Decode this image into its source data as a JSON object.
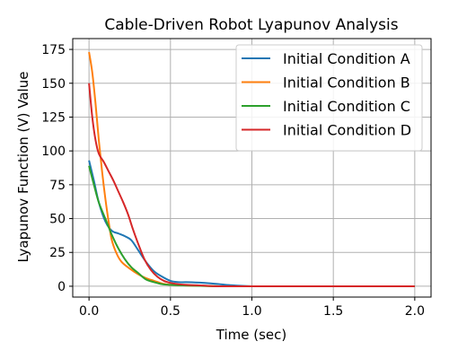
{
  "chart_data": {
    "type": "line",
    "title": "Cable-Driven Robot Lyapunov Analysis",
    "xlabel": "Time (sec)",
    "ylabel": "Lyapunov Function (V) Value",
    "xlim": [
      -0.1,
      2.1
    ],
    "ylim": [
      -8,
      183
    ],
    "xticks": [
      0.0,
      0.5,
      1.0,
      1.5,
      2.0
    ],
    "xtick_labels": [
      "0.0",
      "0.5",
      "1.0",
      "1.5",
      "2.0"
    ],
    "yticks": [
      0,
      25,
      50,
      75,
      100,
      125,
      150,
      175
    ],
    "ytick_labels": [
      "0",
      "25",
      "50",
      "75",
      "100",
      "125",
      "150",
      "175"
    ],
    "grid": true,
    "legend_position": "top-right",
    "series": [
      {
        "name": "Initial Condition A",
        "color": "#1f77b4",
        "x": [
          0,
          0.03,
          0.06,
          0.1,
          0.14,
          0.18,
          0.22,
          0.26,
          0.3,
          0.35,
          0.4,
          0.45,
          0.5,
          0.55,
          0.6,
          0.7,
          0.8,
          0.9,
          1.0,
          1.2,
          1.5,
          2.0
        ],
        "y": [
          93,
          78,
          62,
          48,
          41,
          39,
          37,
          34,
          27,
          18,
          11,
          7,
          4,
          3,
          3,
          2.5,
          1.5,
          0.5,
          0,
          0,
          0,
          0
        ]
      },
      {
        "name": "Initial Condition B",
        "color": "#ff7f0e",
        "x": [
          0,
          0.02,
          0.04,
          0.06,
          0.08,
          0.1,
          0.12,
          0.14,
          0.17,
          0.2,
          0.25,
          0.3,
          0.35,
          0.4,
          0.45,
          0.5,
          0.6,
          0.8,
          1.0,
          1.5,
          2.0
        ],
        "y": [
          173,
          158,
          135,
          108,
          85,
          65,
          48,
          34,
          24,
          18,
          13,
          9,
          6,
          4,
          2,
          1,
          0.5,
          0,
          0,
          0,
          0
        ]
      },
      {
        "name": "Initial Condition C",
        "color": "#2ca02c",
        "x": [
          0,
          0.03,
          0.06,
          0.1,
          0.14,
          0.18,
          0.22,
          0.26,
          0.3,
          0.35,
          0.4,
          0.45,
          0.5,
          0.6,
          0.8,
          1.0,
          1.5,
          2.0
        ],
        "y": [
          89,
          75,
          62,
          50,
          38,
          28,
          20,
          14,
          10,
          5,
          3,
          1.5,
          1,
          0.5,
          0,
          0,
          0,
          0
        ]
      },
      {
        "name": "Initial Condition D",
        "color": "#d62728",
        "x": [
          0,
          0.02,
          0.04,
          0.06,
          0.09,
          0.12,
          0.15,
          0.18,
          0.21,
          0.24,
          0.27,
          0.3,
          0.34,
          0.38,
          0.42,
          0.46,
          0.5,
          0.55,
          0.6,
          0.7,
          0.8,
          1.0,
          1.5,
          2.0
        ],
        "y": [
          150,
          125,
          108,
          98,
          92,
          85,
          78,
          70,
          62,
          53,
          42,
          32,
          20,
          12,
          7,
          4,
          2.5,
          1.5,
          1,
          0.5,
          0,
          0,
          0,
          0
        ]
      }
    ]
  }
}
